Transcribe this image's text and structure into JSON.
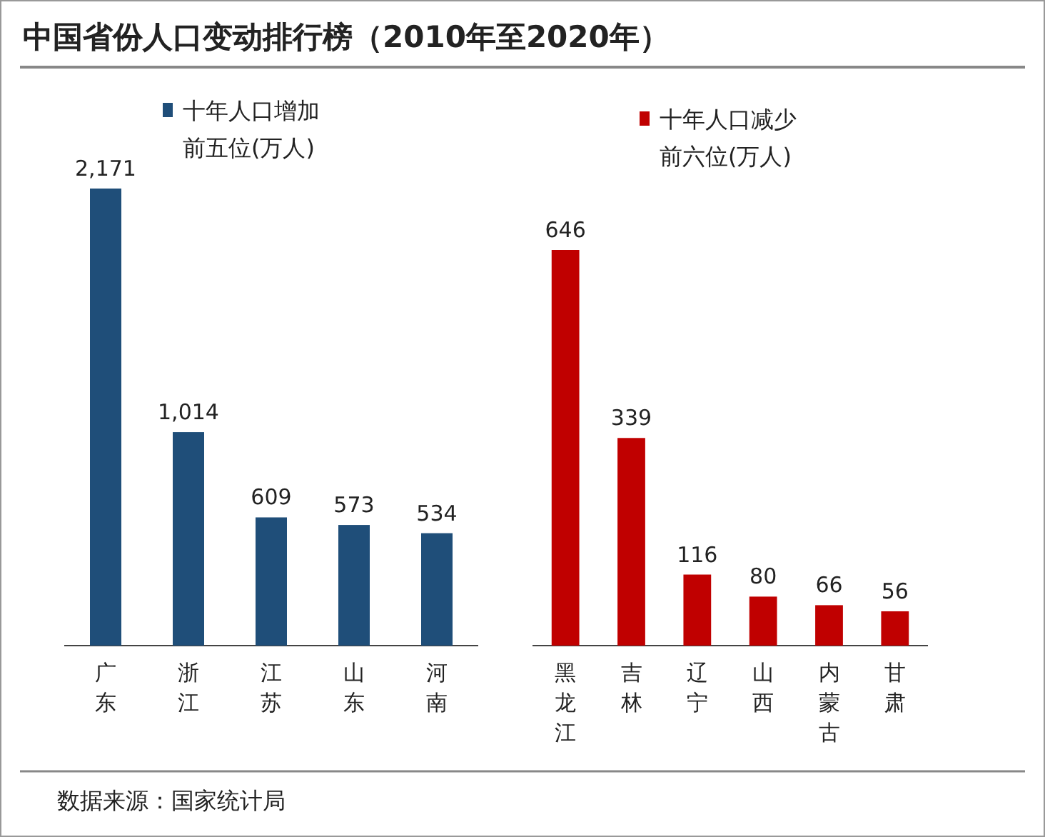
{
  "chart_data": [
    {
      "type": "bar",
      "title": "中国省份人口变动排行榜（2010年至2020年）",
      "categories": [
        "广东",
        "浙江",
        "江苏",
        "山东",
        "河南"
      ],
      "series": [
        {
          "name": "十年人口增加前五位(万人)",
          "color": "#1f4e79",
          "values": [
            2171,
            1014,
            609,
            573,
            534
          ],
          "value_labels": [
            "2,171",
            "1,014",
            "609",
            "573",
            "534"
          ]
        }
      ],
      "legend": "top"
    },
    {
      "type": "bar",
      "categories": [
        "黑龙江",
        "吉林",
        "辽宁",
        "山西",
        "内蒙古",
        "甘肃"
      ],
      "series": [
        {
          "name": "十年人口减少前六位(万人)",
          "color": "#c00000",
          "values": [
            646,
            339,
            116,
            80,
            66,
            56
          ],
          "value_labels": [
            "646",
            "339",
            "116",
            "80",
            "66",
            "56"
          ]
        }
      ],
      "legend": "top",
      "annotations": [
        "数据来源：国家统计局"
      ]
    }
  ]
}
